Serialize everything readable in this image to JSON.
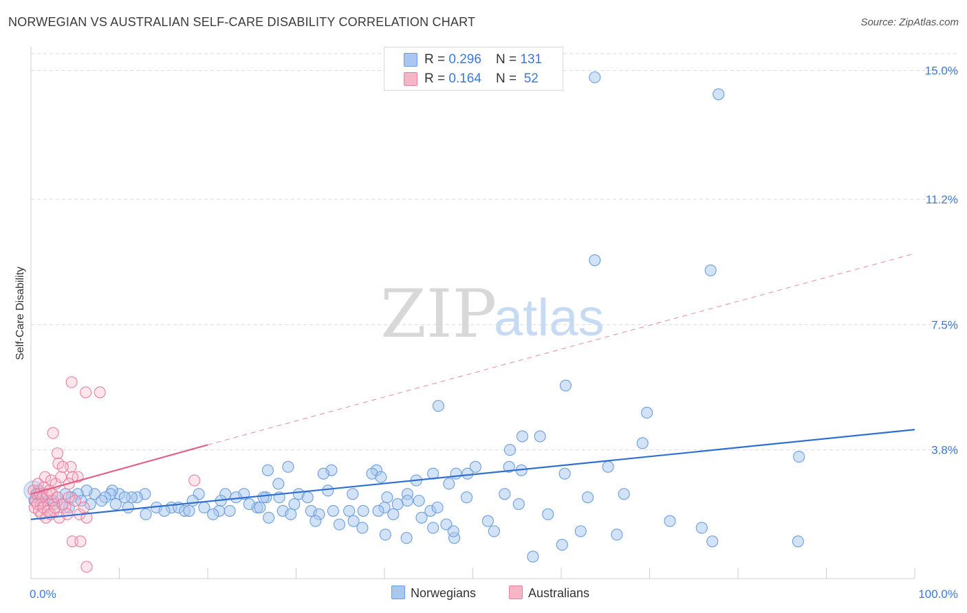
{
  "title": "NORWEGIAN VS AUSTRALIAN SELF-CARE DISABILITY CORRELATION CHART",
  "source": "Source: ZipAtlas.com",
  "watermark": {
    "part1": "ZIP",
    "part2": "atlas"
  },
  "legend_top": [
    {
      "r_label": "R = ",
      "r_value": "0.296",
      "n_label": "N = ",
      "n_value": "131"
    },
    {
      "r_label": "R = ",
      "r_value": "0.164",
      "n_label": "N = ",
      "n_value": " 52"
    }
  ],
  "legend_bottom": [
    "Norwegians",
    "Australians"
  ],
  "colors": {
    "norwegians_fill": "#a8c8f0",
    "norwegians_stroke": "#6a9de0",
    "norwegians_line": "#2f6fd0",
    "australians_fill": "#f7b6c8",
    "australians_stroke": "#e97ea0",
    "australians_line": "#e0608a",
    "tick": "#3b78d8",
    "grid": "#d9d9d9"
  },
  "chart_data": {
    "type": "scatter",
    "title": "NORWEGIAN VS AUSTRALIAN SELF-CARE DISABILITY CORRELATION CHART",
    "xlabel": "",
    "ylabel": "Self-Care Disability",
    "xlim": [
      0,
      100
    ],
    "ylim": [
      0,
      15.5
    ],
    "x_tick_labels": [
      "0.0%",
      "100.0%"
    ],
    "y_ticks": [
      3.8,
      7.5,
      11.2,
      15.0
    ],
    "y_tick_labels": [
      "3.8%",
      "7.5%",
      "11.2%",
      "15.0%"
    ],
    "grid": "horizontal dashed",
    "legend_position": "top-center and bottom",
    "series": [
      {
        "name": "Norwegians",
        "r": 0.296,
        "n": 131,
        "trend": {
          "x": [
            0,
            100
          ],
          "y": [
            1.75,
            4.4
          ]
        },
        "points": [
          [
            77.8,
            14.3
          ],
          [
            63.8,
            14.8
          ],
          [
            63.8,
            9.4
          ],
          [
            76.9,
            9.1
          ],
          [
            60.5,
            5.7
          ],
          [
            46.1,
            5.1
          ],
          [
            69.7,
            4.9
          ],
          [
            55.6,
            4.2
          ],
          [
            57.6,
            4.2
          ],
          [
            69.2,
            4.0
          ],
          [
            54.2,
            3.8
          ],
          [
            86.9,
            3.6
          ],
          [
            65.3,
            3.3
          ],
          [
            50.3,
            3.3
          ],
          [
            54.1,
            3.3
          ],
          [
            55.5,
            3.2
          ],
          [
            45.5,
            3.1
          ],
          [
            48.1,
            3.1
          ],
          [
            60.4,
            3.1
          ],
          [
            49.4,
            3.1
          ],
          [
            39.1,
            3.2
          ],
          [
            29.1,
            3.3
          ],
          [
            34.0,
            3.2
          ],
          [
            26.8,
            3.2
          ],
          [
            33.1,
            3.1
          ],
          [
            38.6,
            3.1
          ],
          [
            39.6,
            3.0
          ],
          [
            28.0,
            2.8
          ],
          [
            47.3,
            2.8
          ],
          [
            43.6,
            2.9
          ],
          [
            67.1,
            2.5
          ],
          [
            53.6,
            2.5
          ],
          [
            63.0,
            2.4
          ],
          [
            43.9,
            2.3
          ],
          [
            49.3,
            2.4
          ],
          [
            55.2,
            2.2
          ],
          [
            36.4,
            2.5
          ],
          [
            42.6,
            2.5
          ],
          [
            40.3,
            2.4
          ],
          [
            33.6,
            2.6
          ],
          [
            30.3,
            2.5
          ],
          [
            28.1,
            2.4
          ],
          [
            31.3,
            2.4
          ],
          [
            26.6,
            2.4
          ],
          [
            22.0,
            2.5
          ],
          [
            21.5,
            2.3
          ],
          [
            24.1,
            2.5
          ],
          [
            23.2,
            2.4
          ],
          [
            19.0,
            2.5
          ],
          [
            18.3,
            2.3
          ],
          [
            15.9,
            2.1
          ],
          [
            12.9,
            2.5
          ],
          [
            12.0,
            2.4
          ],
          [
            11.4,
            2.4
          ],
          [
            10.0,
            2.5
          ],
          [
            9.2,
            2.6
          ],
          [
            9.0,
            2.5
          ],
          [
            8.4,
            2.4
          ],
          [
            7.2,
            2.5
          ],
          [
            6.3,
            2.6
          ],
          [
            5.3,
            2.5
          ],
          [
            4.6,
            2.4
          ],
          [
            3.9,
            2.5
          ],
          [
            3.0,
            2.4
          ],
          [
            2.3,
            2.3
          ],
          [
            1.9,
            2.3
          ],
          [
            1.2,
            2.4
          ],
          [
            0.9,
            2.6
          ],
          [
            0.7,
            2.5
          ],
          [
            0.4,
            2.3
          ],
          [
            10.6,
            2.4
          ],
          [
            14.2,
            2.1
          ],
          [
            16.7,
            2.1
          ],
          [
            17.4,
            2.0
          ],
          [
            19.6,
            2.1
          ],
          [
            21.3,
            2.0
          ],
          [
            25.6,
            2.1
          ],
          [
            28.5,
            2.0
          ],
          [
            24.7,
            2.2
          ],
          [
            26.3,
            2.4
          ],
          [
            29.8,
            2.2
          ],
          [
            31.7,
            2.0
          ],
          [
            34.2,
            2.0
          ],
          [
            37.6,
            2.0
          ],
          [
            40.0,
            2.1
          ],
          [
            41.5,
            2.2
          ],
          [
            45.2,
            2.0
          ],
          [
            46.0,
            2.1
          ],
          [
            42.6,
            2.3
          ],
          [
            44.2,
            1.8
          ],
          [
            41.0,
            1.9
          ],
          [
            39.3,
            2.0
          ],
          [
            36.0,
            2.0
          ],
          [
            32.6,
            1.9
          ],
          [
            29.4,
            1.9
          ],
          [
            26.9,
            1.8
          ],
          [
            25.9,
            2.1
          ],
          [
            22.5,
            2.0
          ],
          [
            20.6,
            1.9
          ],
          [
            17.9,
            2.0
          ],
          [
            15.1,
            2.0
          ],
          [
            13.0,
            1.9
          ],
          [
            11.0,
            2.1
          ],
          [
            9.6,
            2.2
          ],
          [
            8.0,
            2.3
          ],
          [
            6.7,
            2.2
          ],
          [
            5.7,
            2.3
          ],
          [
            4.3,
            2.1
          ],
          [
            3.5,
            2.2
          ],
          [
            2.6,
            2.2
          ],
          [
            32.2,
            1.7
          ],
          [
            34.9,
            1.6
          ],
          [
            36.5,
            1.7
          ],
          [
            47.0,
            1.6
          ],
          [
            51.7,
            1.7
          ],
          [
            58.5,
            1.9
          ],
          [
            72.3,
            1.7
          ],
          [
            75.9,
            1.5
          ],
          [
            86.8,
            1.1
          ],
          [
            77.1,
            1.1
          ],
          [
            45.5,
            1.5
          ],
          [
            47.9,
            1.2
          ],
          [
            52.4,
            1.4
          ],
          [
            47.8,
            1.4
          ],
          [
            42.5,
            1.2
          ],
          [
            40.1,
            1.3
          ],
          [
            37.5,
            1.5
          ],
          [
            66.3,
            1.3
          ],
          [
            62.2,
            1.4
          ],
          [
            60.1,
            1.0
          ],
          [
            56.8,
            0.65
          ]
        ]
      },
      {
        "name": "Australians",
        "r": 0.164,
        "n": 52,
        "trend": {
          "x": [
            0,
            20
          ],
          "y": [
            2.5,
            3.95
          ],
          "extended_to": [
            100,
            9.6
          ]
        },
        "points": [
          [
            0.3,
            2.6
          ],
          [
            0.5,
            2.3
          ],
          [
            0.6,
            2.5
          ],
          [
            0.8,
            2.8
          ],
          [
            1.0,
            2.5
          ],
          [
            1.1,
            2.2
          ],
          [
            1.3,
            2.4
          ],
          [
            1.5,
            2.7
          ],
          [
            1.6,
            3.0
          ],
          [
            1.8,
            2.5
          ],
          [
            2.0,
            2.2
          ],
          [
            2.1,
            2.6
          ],
          [
            2.3,
            2.9
          ],
          [
            2.5,
            2.3
          ],
          [
            2.6,
            2.0
          ],
          [
            0.4,
            2.1
          ],
          [
            0.7,
            2.2
          ],
          [
            0.9,
            2.0
          ],
          [
            1.2,
            1.9
          ],
          [
            1.4,
            2.1
          ],
          [
            1.7,
            1.8
          ],
          [
            1.9,
            2.0
          ],
          [
            2.2,
            1.9
          ],
          [
            2.4,
            2.5
          ],
          [
            2.7,
            2.1
          ],
          [
            2.8,
            2.8
          ],
          [
            3.0,
            2.4
          ],
          [
            3.2,
            1.8
          ],
          [
            3.4,
            3.0
          ],
          [
            3.6,
            2.2
          ],
          [
            3.9,
            2.1
          ],
          [
            4.1,
            1.9
          ],
          [
            4.3,
            2.4
          ],
          [
            4.5,
            3.3
          ],
          [
            5.0,
            2.3
          ],
          [
            5.5,
            1.9
          ],
          [
            6.0,
            2.1
          ],
          [
            6.3,
            1.8
          ],
          [
            2.5,
            4.3
          ],
          [
            3.0,
            3.7
          ],
          [
            3.1,
            3.4
          ],
          [
            3.6,
            3.3
          ],
          [
            5.3,
            3.0
          ],
          [
            4.7,
            3.0
          ],
          [
            4.3,
            2.8
          ],
          [
            18.5,
            2.9
          ],
          [
            7.8,
            5.5
          ],
          [
            6.2,
            5.5
          ],
          [
            4.6,
            5.8
          ],
          [
            6.3,
            0.35
          ],
          [
            4.7,
            1.1
          ],
          [
            5.6,
            1.1
          ]
        ]
      }
    ]
  }
}
